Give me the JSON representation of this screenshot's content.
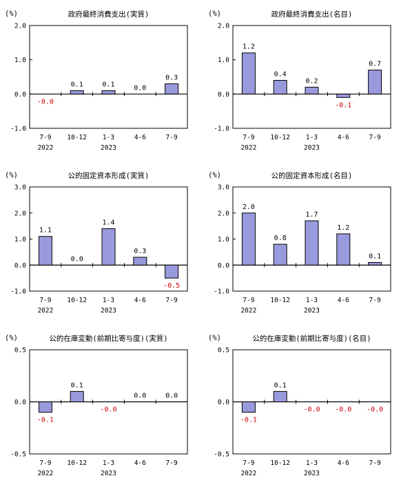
{
  "colors": {
    "bar_fill": "#9999dd",
    "bar_stroke": "#000000",
    "label_positive": "#000000",
    "label_negative": "#cc0000"
  },
  "chart_data": [
    {
      "type": "bar",
      "title": "政府最終消費支出(実質)",
      "unit": "(%)",
      "categories": [
        "7-9",
        "10-12",
        "1-3",
        "4-6",
        "7-9"
      ],
      "years": [
        "2022",
        "2023"
      ],
      "values": [
        -0.0,
        0.1,
        0.1,
        0.0,
        0.3
      ],
      "value_labels": [
        "-0.0",
        "0.1",
        "0.1",
        "0.0",
        "0.3"
      ],
      "ylim": [
        -1.0,
        2.0
      ],
      "yticks": [
        "2.0",
        "1.0",
        "0.0",
        "-1.0"
      ]
    },
    {
      "type": "bar",
      "title": "政府最終消費支出(名目)",
      "unit": "(%)",
      "categories": [
        "7-9",
        "10-12",
        "1-3",
        "4-6",
        "7-9"
      ],
      "years": [
        "2022",
        "2023"
      ],
      "values": [
        1.2,
        0.4,
        0.2,
        -0.1,
        0.7
      ],
      "value_labels": [
        "1.2",
        "0.4",
        "0.2",
        "-0.1",
        "0.7"
      ],
      "ylim": [
        -1.0,
        2.0
      ],
      "yticks": [
        "2.0",
        "1.0",
        "0.0",
        "-1.0"
      ]
    },
    {
      "type": "bar",
      "title": "公的固定資本形成(実質)",
      "unit": "(%)",
      "categories": [
        "7-9",
        "10-12",
        "1-3",
        "4-6",
        "7-9"
      ],
      "years": [
        "2022",
        "2023"
      ],
      "values": [
        1.1,
        0.0,
        1.4,
        0.3,
        -0.5
      ],
      "value_labels": [
        "1.1",
        "0.0",
        "1.4",
        "0.3",
        "-0.5"
      ],
      "ylim": [
        -1.0,
        3.0
      ],
      "yticks": [
        "3.0",
        "2.0",
        "1.0",
        "0.0",
        "-1.0"
      ]
    },
    {
      "type": "bar",
      "title": "公的固定資本形成(名目)",
      "unit": "(%)",
      "categories": [
        "7-9",
        "10-12",
        "1-3",
        "4-6",
        "7-9"
      ],
      "years": [
        "2022",
        "2023"
      ],
      "values": [
        2.0,
        0.8,
        1.7,
        1.2,
        0.1
      ],
      "value_labels": [
        "2.0",
        "0.8",
        "1.7",
        "1.2",
        "0.1"
      ],
      "ylim": [
        -1.0,
        3.0
      ],
      "yticks": [
        "3.0",
        "2.0",
        "1.0",
        "0.0",
        "-1.0"
      ]
    },
    {
      "type": "bar",
      "title": "公的在庫変動(前期比寄与度)(実質)",
      "unit": "(%)",
      "categories": [
        "7-9",
        "10-12",
        "1-3",
        "4-6",
        "7-9"
      ],
      "years": [
        "2022",
        "2023"
      ],
      "values": [
        -0.1,
        0.1,
        -0.0,
        0.0,
        0.0
      ],
      "value_labels": [
        "-0.1",
        "0.1",
        "-0.0",
        "0.0",
        "0.0"
      ],
      "ylim": [
        -0.5,
        0.5
      ],
      "yticks": [
        "0.5",
        "0.0",
        "-0.5"
      ]
    },
    {
      "type": "bar",
      "title": "公的在庫変動(前期比寄与度)(名目)",
      "unit": "(%)",
      "categories": [
        "7-9",
        "10-12",
        "1-3",
        "4-6",
        "7-9"
      ],
      "years": [
        "2022",
        "2023"
      ],
      "values": [
        -0.1,
        0.1,
        -0.0,
        -0.0,
        -0.0
      ],
      "value_labels": [
        "-0.1",
        "0.1",
        "-0.0",
        "-0.0",
        "-0.0"
      ],
      "ylim": [
        -0.5,
        0.5
      ],
      "yticks": [
        "0.5",
        "0.0",
        "-0.5"
      ]
    }
  ]
}
